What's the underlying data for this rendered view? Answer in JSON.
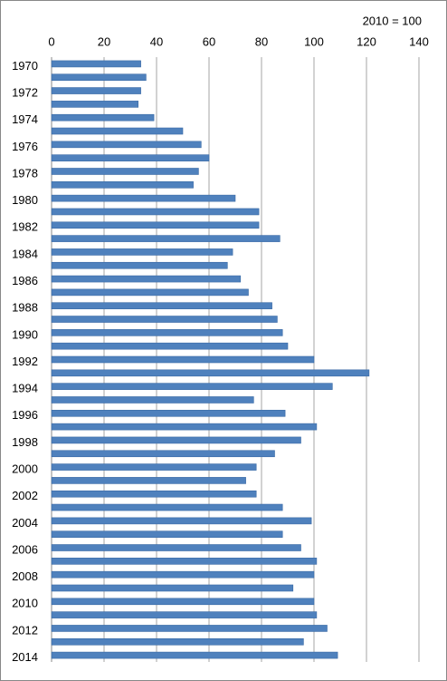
{
  "chart_data": {
    "type": "barh",
    "annotation": "2010 = 100",
    "categories": [
      "1970",
      null,
      "1972",
      null,
      "1974",
      null,
      "1976",
      null,
      "1978",
      null,
      "1980",
      null,
      "1982",
      null,
      "1984",
      null,
      "1986",
      null,
      "1988",
      null,
      "1990",
      null,
      "1992",
      null,
      "1994",
      null,
      "1996",
      null,
      "1998",
      null,
      "2000",
      null,
      "2002",
      null,
      "2004",
      null,
      "2006",
      null,
      "2008",
      null,
      "2010",
      null,
      "2012",
      null,
      "2014"
    ],
    "values": [
      34,
      36,
      34,
      33,
      39,
      50,
      57,
      60,
      56,
      54,
      70,
      79,
      79,
      87,
      69,
      67,
      72,
      75,
      84,
      86,
      88,
      90,
      100,
      121,
      107,
      77,
      89,
      101,
      95,
      85,
      78,
      74,
      78,
      88,
      99,
      88,
      95,
      101,
      100,
      92,
      100,
      101,
      105,
      96,
      109
    ],
    "color": "#4f81bd",
    "xlim": [
      0,
      140
    ],
    "xticks": [
      0,
      20,
      40,
      60,
      80,
      100,
      120,
      140
    ],
    "grid": true
  }
}
